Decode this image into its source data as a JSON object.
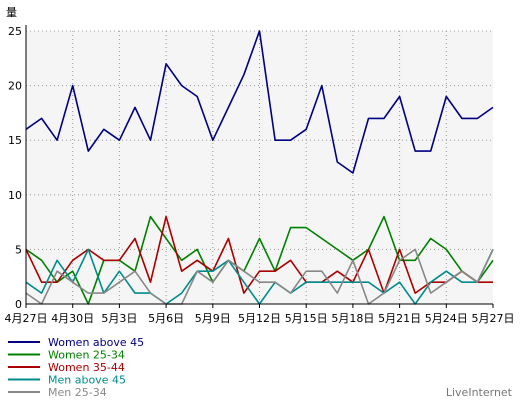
{
  "chart_data": {
    "type": "line",
    "ylabel": "量",
    "ylim": [
      0,
      25
    ],
    "yticks": [
      0,
      5,
      10,
      15,
      20,
      25
    ],
    "x_tick_labels": [
      "4月27日",
      "4月30日",
      "5月3日",
      "5月6日",
      "5月9日",
      "5月12日",
      "5月15日",
      "5月18日",
      "5月21日",
      "5月24日",
      "5月27日"
    ],
    "x_count": 31,
    "grid": true,
    "legend_position": "bottom-left",
    "series": [
      {
        "name": "Women above 45",
        "color": "#000080",
        "values": [
          16,
          17,
          15,
          20,
          14,
          16,
          15,
          18,
          15,
          22,
          20,
          19,
          15,
          18,
          21,
          25,
          15,
          15,
          16,
          20,
          13,
          12,
          17,
          17,
          19,
          14,
          14,
          19,
          17,
          17,
          18
        ]
      },
      {
        "name": "Women 25-34",
        "color": "#008000",
        "values": [
          5,
          4,
          2,
          3,
          0,
          4,
          4,
          3,
          8,
          6,
          4,
          5,
          2,
          4,
          3,
          6,
          3,
          7,
          7,
          6,
          5,
          4,
          5,
          8,
          4,
          4,
          6,
          5,
          3,
          2,
          4
        ]
      },
      {
        "name": "Women 35-44",
        "color": "#aa0000",
        "values": [
          5,
          2,
          2,
          4,
          5,
          4,
          4,
          6,
          2,
          8,
          3,
          4,
          3,
          6,
          1,
          3,
          3,
          4,
          2,
          2,
          3,
          2,
          5,
          1,
          5,
          1,
          2,
          2,
          3,
          2,
          2
        ]
      },
      {
        "name": "Men above 45",
        "color": "#008b8b",
        "values": [
          2,
          1,
          4,
          2,
          5,
          1,
          3,
          1,
          1,
          0,
          1,
          3,
          3,
          4,
          2,
          0,
          2,
          1,
          2,
          2,
          2,
          2,
          2,
          1,
          2,
          0,
          2,
          3,
          2,
          2,
          5
        ]
      },
      {
        "name": "Men 25-34",
        "color": "#888888",
        "values": [
          1,
          0,
          3,
          2,
          1,
          1,
          2,
          3,
          1,
          0,
          0,
          3,
          2,
          4,
          3,
          2,
          2,
          1,
          3,
          3,
          1,
          4,
          0,
          1,
          4,
          5,
          1,
          2,
          3,
          2,
          5
        ]
      }
    ]
  },
  "footer": {
    "brand": "LiveInternet"
  }
}
